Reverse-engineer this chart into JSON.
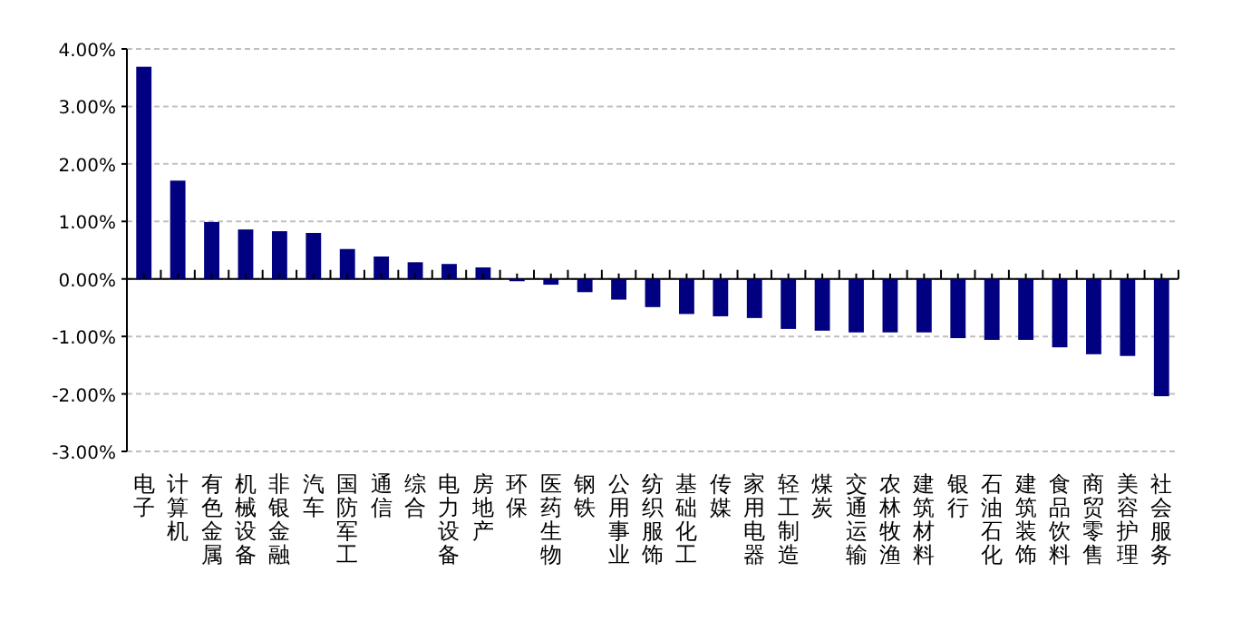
{
  "chart_data": {
    "type": "bar",
    "categories": [
      "电子",
      "计算机",
      "有色金属",
      "机械设备",
      "非银金融",
      "汽车",
      "国防军工",
      "通信",
      "综合",
      "电力设备",
      "房地产",
      "环保",
      "医药生物",
      "钢铁",
      "公用事业",
      "纺织服饰",
      "基础化工",
      "传媒",
      "家用电器",
      "轻工制造",
      "煤炭",
      "交通运输",
      "农林牧渔",
      "建筑材料",
      "银行",
      "石油石化",
      "建筑装饰",
      "食品饮料",
      "商贸零售",
      "美容护理",
      "社会服务"
    ],
    "values": [
      3.69,
      1.71,
      0.99,
      0.86,
      0.83,
      0.8,
      0.52,
      0.39,
      0.29,
      0.26,
      0.2,
      -0.04,
      -0.1,
      -0.23,
      -0.36,
      -0.49,
      -0.61,
      -0.65,
      -0.68,
      -0.87,
      -0.9,
      -0.93,
      -0.93,
      -0.93,
      -1.03,
      -1.06,
      -1.06,
      -1.19,
      -1.31,
      -1.34,
      -2.04
    ],
    "color": "#000080",
    "ylim": [
      -3,
      4
    ],
    "yticks": [
      {
        "value": 4,
        "label": "4.00%"
      },
      {
        "value": 3,
        "label": "3.00%"
      },
      {
        "value": 2,
        "label": "2.00%"
      },
      {
        "value": 1,
        "label": "1.00%"
      },
      {
        "value": 0,
        "label": "0.00%"
      },
      {
        "value": -1,
        "label": "-1.00%"
      },
      {
        "value": -2,
        "label": "-2.00%"
      },
      {
        "value": -3,
        "label": "-3.00%"
      }
    ],
    "grid": "y"
  }
}
